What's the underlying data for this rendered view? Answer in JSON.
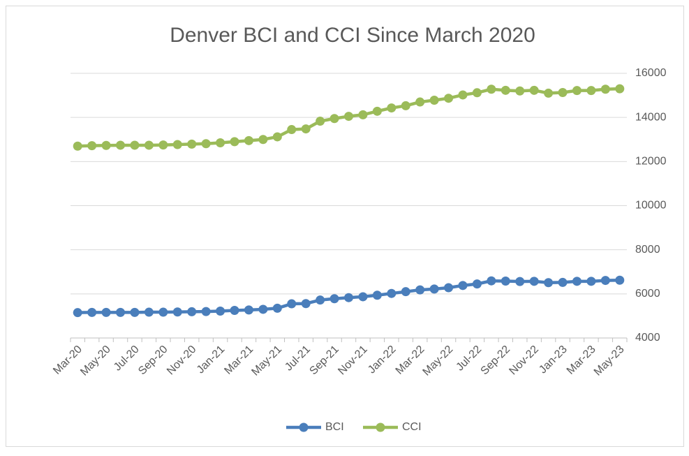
{
  "chart_data": {
    "type": "line",
    "title": "Denver BCI and CCI Since March 2020",
    "categories": [
      "Mar-20",
      null,
      "May-20",
      null,
      "Jul-20",
      null,
      "Sep-20",
      null,
      "Nov-20",
      null,
      "Jan-21",
      null,
      "Mar-21",
      null,
      "May-21",
      null,
      "Jul-21",
      null,
      "Sep-21",
      null,
      "Nov-21",
      null,
      "Jan-22",
      null,
      "Mar-22",
      null,
      "May-22",
      null,
      "Jul-22",
      null,
      "Sep-22",
      null,
      "Nov-22",
      null,
      "Jan-23",
      null,
      "Mar-23",
      null,
      "May-23"
    ],
    "series": [
      {
        "name": "BCI",
        "color": "#4a7ebb",
        "values": [
          5150,
          5160,
          5160,
          5160,
          5160,
          5170,
          5170,
          5180,
          5190,
          5200,
          5220,
          5250,
          5270,
          5300,
          5350,
          5550,
          5560,
          5720,
          5780,
          5830,
          5870,
          5940,
          6020,
          6100,
          6180,
          6220,
          6280,
          6380,
          6450,
          6590,
          6580,
          6560,
          6570,
          6510,
          6520,
          6570,
          6570,
          6610,
          6620
        ]
      },
      {
        "name": "CCI",
        "color": "#9bbb59",
        "values": [
          12700,
          12720,
          12730,
          12740,
          12740,
          12740,
          12750,
          12770,
          12790,
          12810,
          12850,
          12900,
          12950,
          13000,
          13120,
          13450,
          13480,
          13830,
          13950,
          14050,
          14120,
          14280,
          14430,
          14530,
          14700,
          14780,
          14870,
          15020,
          15120,
          15280,
          15230,
          15200,
          15230,
          15100,
          15130,
          15220,
          15220,
          15280,
          15300
        ]
      }
    ],
    "ylim": [
      4000,
      16000
    ],
    "yticks": [
      4000,
      6000,
      8000,
      10000,
      12000,
      14000,
      16000
    ],
    "grid": true,
    "legend": "bottom"
  }
}
